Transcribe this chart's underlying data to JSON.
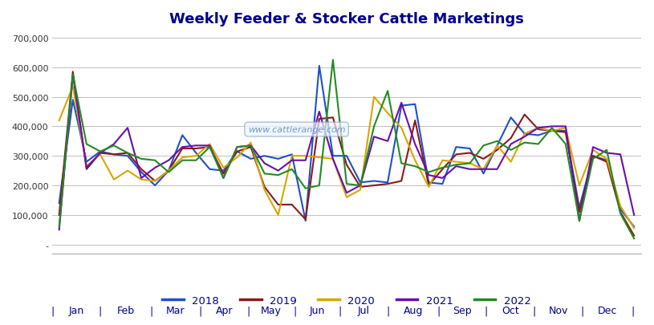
{
  "title": "Weekly Feeder & Stocker Cattle Marketings",
  "title_color": "#00008B",
  "background_color": "#FFFFFF",
  "plot_bg_color": "#FFFFFF",
  "grid_color": "#C0C0C0",
  "watermark": "www.cattlerange.com",
  "ylim": [
    -30000,
    720000
  ],
  "yticks": [
    0,
    100000,
    200000,
    300000,
    400000,
    500000,
    600000,
    700000
  ],
  "ytick_labels": [
    "-",
    "100,000",
    "200,000",
    "300,000",
    "400,000",
    "500,000",
    "600,000",
    "700,000"
  ],
  "months": [
    "Jan",
    "Feb",
    "Mar",
    "Apr",
    "May",
    "Jun",
    "Jul",
    "Aug",
    "Sep",
    "Oct",
    "Nov",
    "Dec"
  ],
  "series": {
    "2018": {
      "color": "#1E50C8",
      "values": [
        140000,
        490000,
        280000,
        315000,
        305000,
        300000,
        245000,
        200000,
        250000,
        370000,
        310000,
        255000,
        250000,
        315000,
        290000,
        300000,
        290000,
        305000,
        80000,
        605000,
        300000,
        300000,
        210000,
        215000,
        210000,
        470000,
        475000,
        210000,
        205000,
        330000,
        325000,
        240000,
        335000,
        430000,
        375000,
        370000,
        385000,
        385000,
        125000,
        300000,
        285000,
        120000,
        60000
      ]
    },
    "2019": {
      "color": "#8B1A1A",
      "values": [
        100000,
        585000,
        255000,
        310000,
        305000,
        310000,
        255000,
        215000,
        250000,
        325000,
        325000,
        330000,
        240000,
        315000,
        330000,
        195000,
        135000,
        135000,
        85000,
        425000,
        430000,
        270000,
        195000,
        200000,
        205000,
        215000,
        420000,
        200000,
        255000,
        305000,
        310000,
        290000,
        320000,
        360000,
        440000,
        390000,
        385000,
        380000,
        110000,
        300000,
        280000,
        110000,
        30000
      ]
    },
    "2020": {
      "color": "#DAA500",
      "values": [
        420000,
        535000,
        265000,
        305000,
        220000,
        250000,
        220000,
        215000,
        250000,
        295000,
        300000,
        340000,
        260000,
        295000,
        345000,
        185000,
        100000,
        300000,
        300000,
        295000,
        290000,
        160000,
        185000,
        500000,
        445000,
        395000,
        285000,
        195000,
        285000,
        280000,
        275000,
        255000,
        335000,
        280000,
        375000,
        395000,
        385000,
        395000,
        200000,
        320000,
        290000,
        130000,
        55000
      ]
    },
    "2021": {
      "color": "#6A0DAD",
      "values": [
        50000,
        575000,
        260000,
        310000,
        340000,
        395000,
        225000,
        260000,
        285000,
        330000,
        335000,
        335000,
        225000,
        330000,
        335000,
        275000,
        250000,
        285000,
        285000,
        450000,
        290000,
        175000,
        200000,
        365000,
        350000,
        480000,
        340000,
        235000,
        225000,
        265000,
        255000,
        255000,
        255000,
        340000,
        365000,
        395000,
        400000,
        400000,
        80000,
        330000,
        310000,
        305000,
        100000
      ]
    },
    "2022": {
      "color": "#228B22",
      "values": [
        60000,
        575000,
        340000,
        315000,
        335000,
        310000,
        290000,
        285000,
        245000,
        285000,
        285000,
        330000,
        225000,
        330000,
        335000,
        240000,
        235000,
        255000,
        190000,
        200000,
        625000,
        205000,
        200000,
        400000,
        520000,
        275000,
        265000,
        245000,
        260000,
        270000,
        275000,
        335000,
        350000,
        320000,
        345000,
        340000,
        395000,
        340000,
        80000,
        290000,
        320000,
        105000,
        20000
      ]
    }
  },
  "legend_order": [
    "2018",
    "2019",
    "2020",
    "2021",
    "2022"
  ],
  "month_boundaries": [
    0.0,
    3.5,
    7.2,
    10.8,
    14.3,
    17.7,
    21.0,
    24.5,
    28.2,
    31.7,
    35.2,
    38.7,
    42.4
  ],
  "figsize": [
    8.15,
    4.06
  ],
  "dpi": 100
}
